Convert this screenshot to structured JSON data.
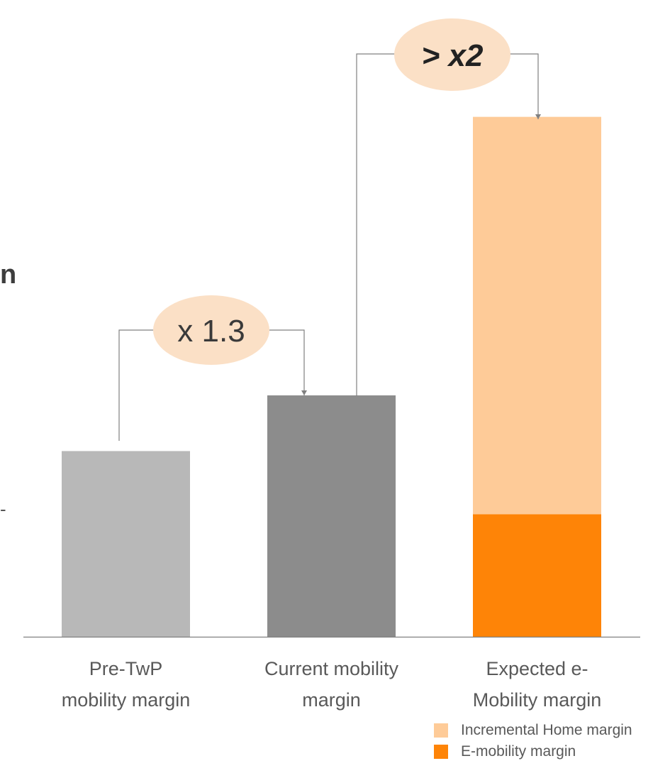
{
  "page": {
    "cut_text": "n",
    "cut_mark": "-"
  },
  "colors": {
    "pre_twp": "#b8b8b8",
    "current": "#8c8c8c",
    "emobility": "#fe8407",
    "incremental_home": "#fecb98",
    "bubble": "#fbe0c6",
    "axis": "#808080",
    "connector": "#808080"
  },
  "chart_data": {
    "type": "bar",
    "stacked": true,
    "categories": [
      [
        "Pre-TwP",
        "mobility margin"
      ],
      [
        "Current mobility",
        "margin"
      ],
      [
        "Expected e-",
        "Mobility margin"
      ]
    ],
    "series": [
      {
        "name": "",
        "values": [
          1.0,
          1.3,
          0
        ]
      },
      {
        "name": "E-mobility margin",
        "values": [
          0,
          0,
          0.66
        ]
      },
      {
        "name": "Incremental  Home margin",
        "values": [
          0,
          0,
          2.14
        ]
      }
    ],
    "ylim": [
      0,
      3.2
    ],
    "grid": false,
    "y_axis_visible": false,
    "legend_position": "bottom-right",
    "annotations": [
      {
        "text": "x 1.3",
        "from": 0,
        "to": 1,
        "italic": false
      },
      {
        "text": "> x2",
        "from": 1,
        "to": 2,
        "italic": true
      }
    ]
  }
}
